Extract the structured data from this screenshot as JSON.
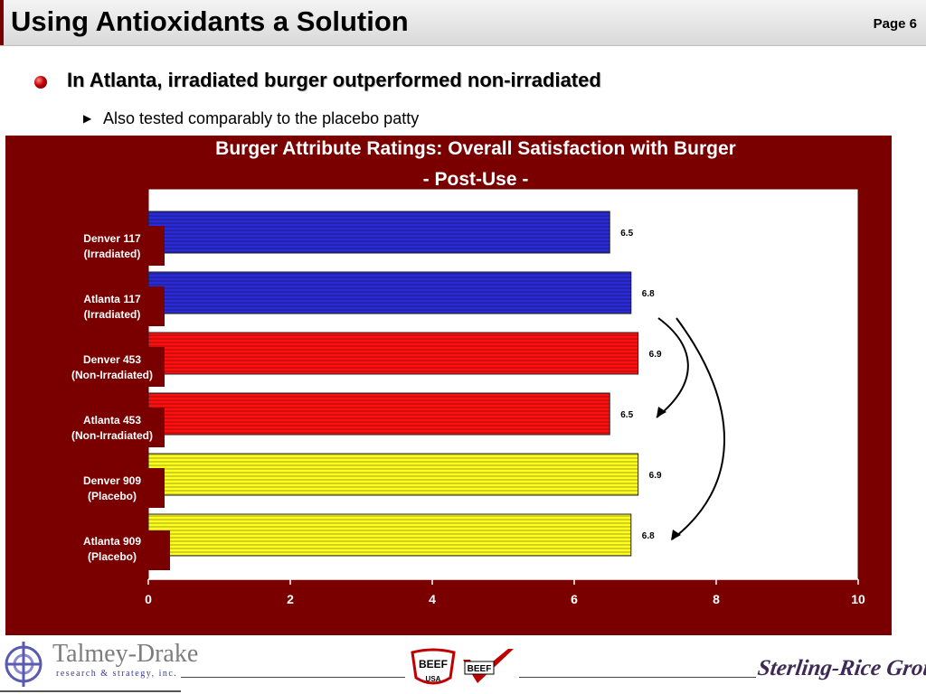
{
  "header": {
    "title": "Using Antioxidants a Solution",
    "page": "Page 6"
  },
  "bullets": {
    "main": "In Atlanta, irradiated burger outperformed non-irradiated",
    "sub": "Also tested comparably to the placebo patty"
  },
  "chart_data": {
    "type": "bar",
    "orientation": "horizontal",
    "title": "Burger Attribute Ratings:  Overall Satisfaction with Burger",
    "subtitle": "- Post-Use  -",
    "xlim": [
      0,
      10
    ],
    "xticks": [
      "0",
      "2",
      "4",
      "6",
      "8",
      "10"
    ],
    "grid": false,
    "categories": [
      [
        "Denver 117",
        "(Irradiated)"
      ],
      [
        "Atlanta 117",
        "(Irradiated)"
      ],
      [
        "Denver 453",
        "(Non-Irradiated)"
      ],
      [
        "Atlanta 453",
        "(Non-Irradiated)"
      ],
      [
        "Denver 909",
        "(Placebo)"
      ],
      [
        "Atlanta 909",
        "(Placebo)"
      ]
    ],
    "values": [
      6.5,
      6.8,
      6.9,
      6.5,
      6.9,
      6.8
    ],
    "value_labels": [
      "6.5",
      "6.8",
      "6.9",
      "6.5",
      "6.9",
      "6.8"
    ],
    "bar_colors": [
      "#2b2bd6",
      "#2b2bd6",
      "#ff1010",
      "#ff1010",
      "#ffff20",
      "#ffff20"
    ],
    "annotations": "two curved arrows on the right pointing from Atlanta 117 down to Atlanta 453 and Atlanta 909"
  },
  "colors": {
    "panel": "#7a0000",
    "irradiated": "#2b2bd6",
    "non_irradiated": "#ff1010",
    "placebo": "#ffff20"
  },
  "footer": {
    "left_logo_name": "Talmey-Drake",
    "left_logo_sub": "research & strategy, inc.",
    "beef_logo_text": "BEEF",
    "beef_usa_text": "USA",
    "beef_check_text": "BEEF",
    "right_logo": "Sterling-Rice Group"
  }
}
